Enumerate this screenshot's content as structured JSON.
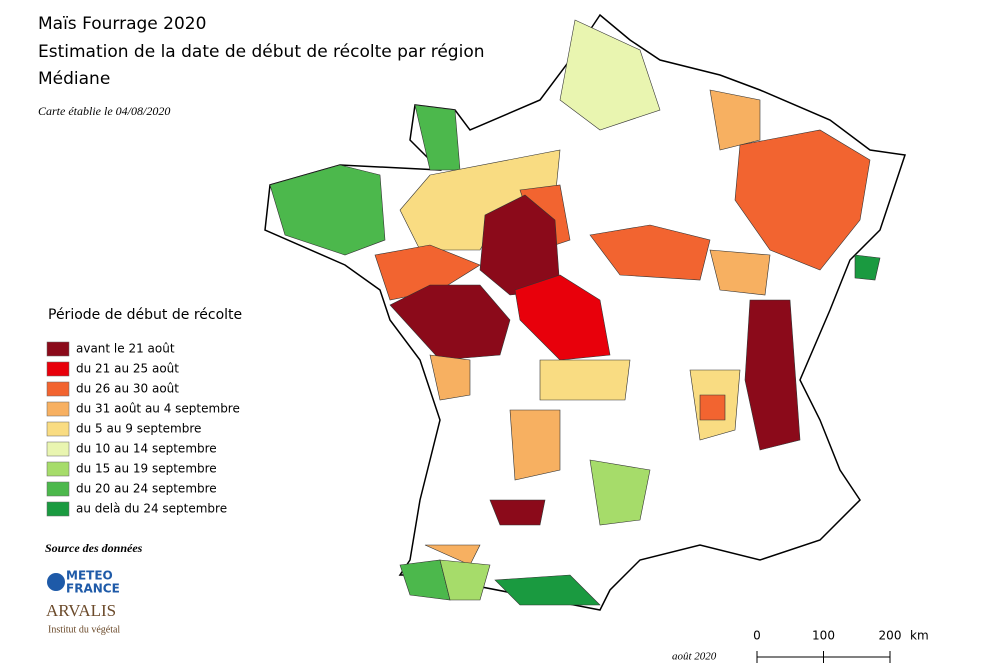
{
  "header": {
    "title": [
      "Maïs Fourrage 2020",
      "Estimation de la date de début de récolte par région",
      "Médiane"
    ],
    "subtitle": "Carte établie le 04/08/2020"
  },
  "legend": {
    "title": "Période de début de récolte",
    "items": [
      {
        "label": "avant le 21 août",
        "color": "#8b0a1a"
      },
      {
        "label": "du 21 au 25 août",
        "color": "#e8000b"
      },
      {
        "label": "du 26 au 30 août",
        "color": "#f26430"
      },
      {
        "label": "du 31 août au 4 septembre",
        "color": "#f7b061"
      },
      {
        "label": "du 5 au 9 septembre",
        "color": "#f9dc82"
      },
      {
        "label": "du 10 au 14 septembre",
        "color": "#e9f5b0"
      },
      {
        "label": "du 15 au 19 septembre",
        "color": "#a6dc6a"
      },
      {
        "label": "du 20 au 24 septembre",
        "color": "#4cb84c"
      },
      {
        "label": "au delà du 24 septembre",
        "color": "#1a9a40"
      }
    ]
  },
  "source": {
    "title": "Source des données",
    "logos": [
      "METEO",
      "FRANCE",
      "ARVALIS",
      "Institut du végétal"
    ]
  },
  "scale": {
    "ticks": [
      0,
      100,
      200
    ],
    "unit": "km"
  },
  "footer": "août 2020"
}
